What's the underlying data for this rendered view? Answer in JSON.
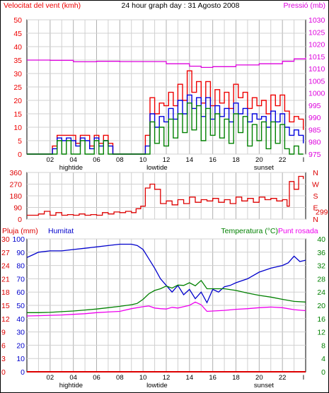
{
  "header": {
    "left_label": "Velocitat del vent (kmh)",
    "center_title": "24 hour graph day : 31 Agosto 2008",
    "right_label": "Pressió (mb)"
  },
  "colors": {
    "wind_avg": "#0000dd",
    "wind_gust": "#ee0000",
    "wind_low": "#008000",
    "pressure": "#dd00dd",
    "direction": "#dd0000",
    "humidity": "#0000cc",
    "temperature": "#008000",
    "dewpoint": "#ee00ee",
    "rain": "#dd0000",
    "frame": "#000000",
    "grid": "#d0d0d0",
    "grid_major": "#b0b0b0"
  },
  "x_axis": {
    "ticks": [
      "02",
      "04",
      "06",
      "08",
      "10",
      "12",
      "14",
      "16",
      "18",
      "20",
      "22"
    ],
    "end_marker": "I",
    "annotations": [
      {
        "label": "hightide",
        "hour": 3.8
      },
      {
        "label": "lowtide",
        "hour": 11.2
      },
      {
        "label": "sunset",
        "hour": 20.4
      }
    ]
  },
  "chart_data": [
    {
      "type": "line",
      "title": "24 hour graph day : 31 Agosto 2008",
      "ylabel_left": "Velocitat del vent (kmh)",
      "ylabel_right": "Pressió (mb)",
      "x_range_hours": [
        0,
        24
      ],
      "ylim_left": [
        0,
        50
      ],
      "yticks_left": [
        0,
        5,
        10,
        15,
        20,
        25,
        30,
        35,
        40,
        45,
        50
      ],
      "ylim_right": [
        975,
        1030
      ],
      "yticks_right": [
        975,
        980,
        985,
        990,
        995,
        1000,
        1005,
        1010,
        1015,
        1020,
        1025,
        1030
      ],
      "series": [
        {
          "name": "Velocitat del vent (kmh)",
          "axis": "left",
          "role": "gust",
          "x": [
            0,
            2.0,
            2.2,
            2.6,
            3.0,
            3.4,
            3.8,
            4.2,
            4.6,
            5.0,
            5.4,
            5.8,
            6.2,
            6.6,
            7.0,
            7.4,
            7.8,
            8.2,
            8.6,
            9.0,
            9.4,
            9.8,
            10.2,
            10.6,
            11.0,
            11.4,
            11.8,
            12.2,
            12.6,
            13.0,
            13.4,
            13.8,
            14.2,
            14.6,
            15.0,
            15.4,
            15.8,
            16.2,
            16.6,
            17.0,
            17.4,
            17.8,
            18.2,
            18.6,
            19.0,
            19.4,
            19.8,
            20.2,
            20.6,
            21.0,
            21.4,
            21.8,
            22.2,
            22.6,
            23.0,
            23.4,
            23.8
          ],
          "values": [
            0,
            0,
            3,
            7,
            7,
            7,
            7,
            4,
            7,
            7,
            3,
            7,
            4,
            7,
            4,
            0,
            0,
            0,
            0,
            0,
            0,
            0,
            7,
            21,
            15,
            19,
            18,
            23,
            18,
            26,
            20,
            31,
            23,
            27,
            19,
            27,
            18,
            24,
            19,
            23,
            17,
            26,
            21,
            23,
            17,
            21,
            18,
            20,
            15,
            22,
            18,
            22,
            16,
            12,
            14,
            13,
            9
          ]
        },
        {
          "name": "Velocitat del vent (kmh)",
          "axis": "left",
          "role": "average",
          "x": [
            0,
            2.0,
            2.2,
            2.6,
            3.0,
            3.4,
            3.8,
            4.2,
            4.6,
            5.0,
            5.4,
            5.8,
            6.2,
            6.6,
            7.0,
            7.4,
            7.8,
            8.2,
            8.6,
            9.0,
            9.4,
            9.8,
            10.2,
            10.6,
            11.0,
            11.4,
            11.8,
            12.2,
            12.6,
            13.0,
            13.4,
            13.8,
            14.2,
            14.6,
            15.0,
            15.4,
            15.8,
            16.2,
            16.6,
            17.0,
            17.4,
            17.8,
            18.2,
            18.6,
            19.0,
            19.4,
            19.8,
            20.2,
            20.6,
            21.0,
            21.4,
            21.8,
            22.2,
            22.6,
            23.0,
            23.4,
            23.8
          ],
          "values": [
            0,
            0,
            2,
            6,
            5,
            6,
            5,
            3,
            6,
            5,
            2,
            6,
            3,
            5,
            3,
            0,
            0,
            0,
            0,
            0,
            0,
            0,
            3,
            15,
            10,
            14,
            12,
            17,
            13,
            20,
            15,
            22,
            17,
            21,
            14,
            21,
            13,
            18,
            14,
            17,
            12,
            19,
            15,
            17,
            12,
            15,
            13,
            14,
            10,
            16,
            12,
            15,
            10,
            7,
            9,
            7,
            4
          ]
        },
        {
          "name": "Velocitat del vent (kmh)",
          "axis": "left",
          "role": "minimum",
          "x": [
            0,
            2.0,
            2.2,
            2.6,
            3.0,
            3.4,
            3.8,
            4.2,
            4.6,
            5.0,
            5.4,
            5.8,
            6.2,
            6.6,
            7.0,
            7.4,
            7.8,
            8.2,
            8.6,
            9.0,
            9.4,
            9.8,
            10.2,
            10.6,
            11.0,
            11.4,
            11.8,
            12.2,
            12.6,
            13.0,
            13.4,
            13.8,
            14.2,
            14.6,
            15.0,
            15.4,
            15.8,
            16.2,
            16.6,
            17.0,
            17.4,
            17.8,
            18.2,
            18.6,
            19.0,
            19.4,
            19.8,
            20.2,
            20.6,
            21.0,
            21.4,
            21.8,
            22.2,
            22.6,
            23.0,
            23.4,
            23.8
          ],
          "values": [
            0,
            0,
            0,
            5,
            0,
            5,
            0,
            0,
            5,
            0,
            0,
            5,
            0,
            5,
            0,
            0,
            0,
            0,
            0,
            0,
            0,
            0,
            0,
            12,
            4,
            10,
            3,
            13,
            6,
            15,
            8,
            19,
            9,
            18,
            5,
            17,
            7,
            15,
            6,
            13,
            4,
            15,
            8,
            14,
            3,
            11,
            5,
            12,
            2,
            12,
            4,
            11,
            2,
            0,
            3,
            0,
            0
          ]
        },
        {
          "name": "Pressió (mb)",
          "axis": "right",
          "x": [
            0,
            2,
            4,
            6,
            8,
            10,
            12,
            14,
            15,
            16,
            18,
            20,
            22,
            23,
            24
          ],
          "values": [
            1013.5,
            1013.4,
            1012.8,
            1013.0,
            1012.9,
            1012.9,
            1012.0,
            1011.0,
            1010.5,
            1010.8,
            1011.5,
            1012.0,
            1013.0,
            1014.0,
            1014.5
          ]
        }
      ]
    },
    {
      "type": "line",
      "ylabel_left": "",
      "ylim_left": [
        0,
        360
      ],
      "yticks_left": [
        0,
        90,
        180,
        270,
        360
      ],
      "right_axis_labels": [
        "N",
        "W",
        "S",
        "E",
        "N"
      ],
      "current_value": "299",
      "series": [
        {
          "name": "direction",
          "axis": "left",
          "x": [
            0,
            1.0,
            1.5,
            2.0,
            2.5,
            3.0,
            3.5,
            4.0,
            4.5,
            5.0,
            5.5,
            6.0,
            6.5,
            7.0,
            7.5,
            8.0,
            8.5,
            9.0,
            9.4,
            9.8,
            10.2,
            10.6,
            11.0,
            11.5,
            12.0,
            12.5,
            13.0,
            13.5,
            14.0,
            14.5,
            15.0,
            15.5,
            16.0,
            16.5,
            17.0,
            17.5,
            18.0,
            18.5,
            19.0,
            19.5,
            20.0,
            20.5,
            21.0,
            21.5,
            22.0,
            22.4,
            22.6,
            23.0,
            23.4,
            23.8
          ],
          "values": [
            30,
            40,
            60,
            30,
            50,
            30,
            35,
            30,
            40,
            30,
            35,
            30,
            50,
            40,
            55,
            50,
            60,
            50,
            80,
            100,
            240,
            270,
            230,
            120,
            140,
            110,
            150,
            120,
            170,
            130,
            150,
            140,
            160,
            130,
            150,
            120,
            170,
            140,
            160,
            130,
            170,
            150,
            160,
            140,
            150,
            100,
            290,
            230,
            330,
            310
          ]
        }
      ]
    },
    {
      "type": "line",
      "ylabel_left": "Pluja (mm)",
      "ylabel_left2": "Humitat",
      "ylabel_right": "Temperatura (°C)",
      "ylabel_right2": "Punt rosada",
      "ylim_left": [
        0,
        100
      ],
      "yticks_left": [
        0,
        10,
        20,
        30,
        40,
        50,
        60,
        70,
        80,
        90,
        100
      ],
      "rain_ticks": [
        "0",
        "3",
        "6",
        "9",
        "12",
        "15",
        "18",
        "21",
        "24",
        "27",
        "30"
      ],
      "ylim_right": [
        0,
        40
      ],
      "yticks_right": [
        0,
        4,
        8,
        12,
        16,
        20,
        24,
        28,
        32,
        36,
        40
      ],
      "series": [
        {
          "name": "Humitat",
          "axis": "left",
          "x": [
            0,
            0.5,
            1,
            2,
            3,
            4,
            5,
            6,
            7,
            8,
            9,
            9.5,
            10,
            10.5,
            11,
            11.5,
            12,
            12.5,
            13,
            13.5,
            14,
            14.5,
            15,
            15.5,
            16,
            16.5,
            17,
            17.5,
            18,
            19,
            20,
            21,
            22,
            22.5,
            23,
            23.5,
            24
          ],
          "values": [
            86,
            88,
            90,
            91,
            91,
            92,
            93,
            94,
            95,
            96,
            96,
            95,
            92,
            85,
            78,
            70,
            65,
            60,
            65,
            58,
            62,
            55,
            60,
            52,
            62,
            60,
            64,
            65,
            67,
            70,
            75,
            78,
            80,
            82,
            87,
            83,
            84
          ]
        },
        {
          "name": "Temperatura (°C)",
          "axis": "right",
          "x": [
            0,
            1,
            2,
            3,
            4,
            5,
            6,
            7,
            8,
            9,
            9.5,
            10,
            10.5,
            11,
            11.5,
            12,
            12.5,
            13,
            13.5,
            14,
            14.5,
            15,
            15.5,
            16,
            17,
            18,
            19,
            20,
            21,
            22,
            23,
            24
          ],
          "values": [
            17.8,
            17.8,
            17.9,
            18.1,
            18.3,
            18.6,
            18.9,
            19.3,
            19.7,
            20.2,
            20.6,
            21.8,
            23.5,
            24.5,
            25.0,
            25.8,
            25.2,
            26.1,
            26.0,
            26.8,
            25.9,
            27.5,
            25.0,
            25.0,
            25.0,
            24.5,
            23.7,
            23.0,
            22.5,
            21.8,
            21.2,
            21.0
          ]
        },
        {
          "name": "Punt rosada",
          "axis": "right",
          "x": [
            0,
            1,
            2,
            3,
            4,
            5,
            6,
            7,
            8,
            9,
            10,
            10.5,
            11,
            11.5,
            12,
            12.5,
            13,
            13.5,
            14,
            14.5,
            15,
            15.5,
            16,
            17,
            18,
            19,
            20,
            21,
            22,
            23,
            24
          ],
          "values": [
            16.8,
            16.9,
            17.0,
            17.1,
            17.3,
            17.5,
            17.8,
            18.0,
            18.2,
            19.0,
            19.6,
            19.8,
            19.2,
            19.0,
            18.9,
            19.4,
            19.2,
            19.6,
            20.0,
            21.0,
            20.2,
            18.2,
            18.3,
            18.5,
            18.8,
            19.0,
            19.3,
            19.5,
            19.3,
            18.7,
            18.4
          ]
        },
        {
          "name": "Pluja (mm)",
          "axis": "rain",
          "x": [
            0,
            24
          ],
          "values": [
            0,
            0
          ]
        }
      ]
    }
  ]
}
